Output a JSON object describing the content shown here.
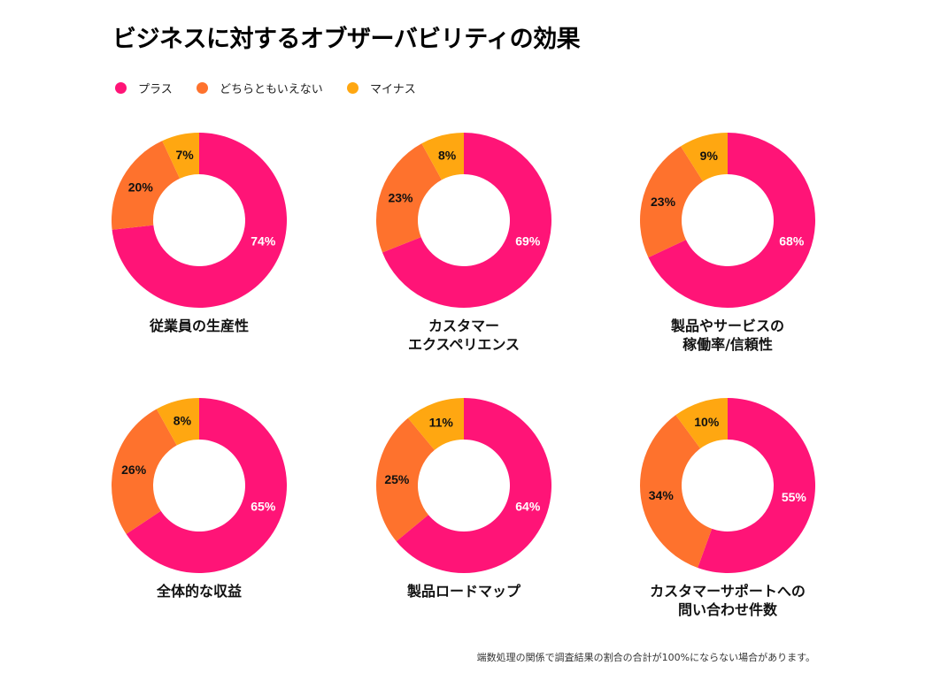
{
  "title": "ビジネスに対するオブザーバビリティの効果",
  "legend": [
    {
      "label": "プラス",
      "color": "#ff1477"
    },
    {
      "label": "どちらともいえない",
      "color": "#fe722d"
    },
    {
      "label": "マイナス",
      "color": "#ffa711"
    }
  ],
  "footnote": "端数処理の関係で調査結果の割合の合計が100%にならない場合があります。",
  "chart_data": [
    {
      "type": "pie",
      "title_lines": [
        "従業員の生産性"
      ],
      "labels": [
        "プラス",
        "どちらともいえない",
        "マイナス"
      ],
      "values": [
        74,
        20,
        7
      ],
      "value_labels": [
        "74%",
        "20%",
        "7%"
      ]
    },
    {
      "type": "pie",
      "title_lines": [
        "カスタマー",
        "エクスペリエンス"
      ],
      "labels": [
        "プラス",
        "どちらともいえない",
        "マイナス"
      ],
      "values": [
        69,
        23,
        8
      ],
      "value_labels": [
        "69%",
        "23%",
        "8%"
      ]
    },
    {
      "type": "pie",
      "title_lines": [
        "製品やサービスの",
        "稼働率/信頼性"
      ],
      "labels": [
        "プラス",
        "どちらともいえない",
        "マイナス"
      ],
      "values": [
        68,
        23,
        9
      ],
      "value_labels": [
        "68%",
        "23%",
        "9%"
      ]
    },
    {
      "type": "pie",
      "title_lines": [
        "全体的な収益"
      ],
      "labels": [
        "プラス",
        "どちらともいえない",
        "マイナス"
      ],
      "values": [
        65,
        26,
        8
      ],
      "value_labels": [
        "65%",
        "26%",
        "8%"
      ]
    },
    {
      "type": "pie",
      "title_lines": [
        "製品ロードマップ"
      ],
      "labels": [
        "プラス",
        "どちらともいえない",
        "マイナス"
      ],
      "values": [
        64,
        25,
        11
      ],
      "value_labels": [
        "64%",
        "25%",
        "11%"
      ]
    },
    {
      "type": "pie",
      "title_lines": [
        "カスタマーサポートへの",
        "問い合わせ件数"
      ],
      "labels": [
        "プラス",
        "どちらともいえない",
        "マイナス"
      ],
      "values": [
        55,
        34,
        10
      ],
      "value_labels": [
        "55%",
        "34%",
        "10%"
      ]
    }
  ]
}
